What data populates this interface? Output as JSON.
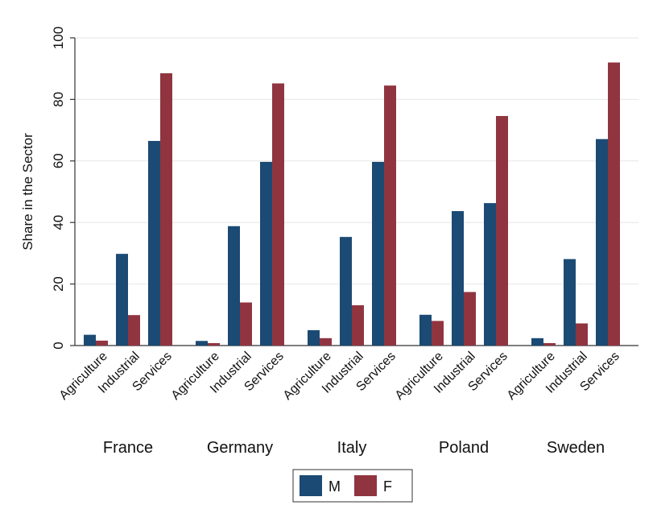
{
  "chart_data": {
    "type": "bar",
    "ylabel": "Share in the Sector",
    "ylim": [
      0,
      100
    ],
    "yticks": [
      0,
      20,
      40,
      60,
      80,
      100
    ],
    "grid": true,
    "legend_position": "bottom",
    "groups": [
      "France",
      "Germany",
      "Italy",
      "Poland",
      "Sweden"
    ],
    "categories": [
      "Agriculture",
      "Industrial",
      "Services"
    ],
    "series": [
      {
        "name": "M",
        "color": "#1b4a74",
        "values": [
          [
            3.5,
            29.8,
            66.5
          ],
          [
            1.5,
            38.8,
            59.7
          ],
          [
            5.0,
            35.3,
            59.7
          ],
          [
            10.0,
            43.7,
            46.3
          ],
          [
            2.4,
            28.1,
            67.1
          ]
        ]
      },
      {
        "name": "F",
        "color": "#903540",
        "values": [
          [
            1.6,
            9.9,
            88.5
          ],
          [
            0.8,
            14.0,
            85.2
          ],
          [
            2.4,
            13.1,
            84.5
          ],
          [
            8.0,
            17.4,
            74.6
          ],
          [
            0.8,
            7.2,
            92.0
          ]
        ]
      }
    ]
  }
}
